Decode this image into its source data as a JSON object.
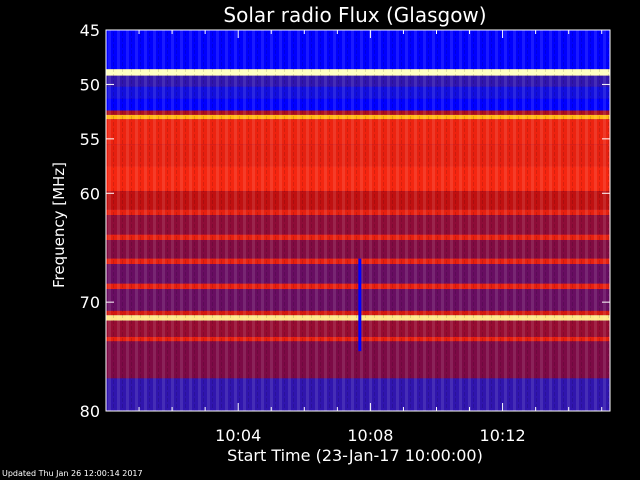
{
  "chart_data": {
    "type": "heatmap",
    "title": "Solar radio Flux (Glasgow)",
    "xlabel": "Start Time (23-Jan-17 10:00:00)",
    "ylabel": "Frequency [MHz]",
    "x_range_minutes": [
      0,
      15.25
    ],
    "ylim": [
      45,
      80
    ],
    "x_ticks": [
      {
        "minute": 4,
        "label": "10:04"
      },
      {
        "minute": 8,
        "label": "10:08"
      },
      {
        "minute": 12,
        "label": "10:12"
      }
    ],
    "y_ticks": [
      {
        "mhz": 45,
        "label": "45"
      },
      {
        "mhz": 50,
        "label": "50"
      },
      {
        "mhz": 55,
        "label": "55"
      },
      {
        "mhz": 60,
        "label": "60"
      },
      {
        "mhz": 70,
        "label": "70"
      },
      {
        "mhz": 80,
        "label": "80"
      }
    ],
    "colormap": [
      "#0000ff",
      "#1e18c8",
      "#7a0a48",
      "#c01010",
      "#ff2a10",
      "#ffb000",
      "#ffffc0"
    ],
    "frequency_bands": [
      {
        "from": 45.0,
        "to": 48.6,
        "level": 0.0
      },
      {
        "from": 48.6,
        "to": 49.2,
        "level": 1.0
      },
      {
        "from": 49.2,
        "to": 50.2,
        "level": 0.2
      },
      {
        "from": 50.2,
        "to": 51.3,
        "level": 0.1
      },
      {
        "from": 51.3,
        "to": 52.4,
        "level": 0.0
      },
      {
        "from": 52.4,
        "to": 52.8,
        "level": 0.45
      },
      {
        "from": 52.8,
        "to": 53.2,
        "level": 0.85
      },
      {
        "from": 53.2,
        "to": 55.5,
        "level": 0.62
      },
      {
        "from": 55.5,
        "to": 57.5,
        "level": 0.6
      },
      {
        "from": 57.5,
        "to": 59.8,
        "level": 0.64
      },
      {
        "from": 59.8,
        "to": 61.5,
        "level": 0.5
      },
      {
        "from": 61.5,
        "to": 62.0,
        "level": 0.6
      },
      {
        "from": 62.0,
        "to": 63.8,
        "level": 0.38
      },
      {
        "from": 63.8,
        "to": 64.3,
        "level": 0.6
      },
      {
        "from": 64.3,
        "to": 66.0,
        "level": 0.35
      },
      {
        "from": 66.0,
        "to": 66.5,
        "level": 0.6
      },
      {
        "from": 66.5,
        "to": 68.3,
        "level": 0.3
      },
      {
        "from": 68.3,
        "to": 68.8,
        "level": 0.6
      },
      {
        "from": 68.8,
        "to": 70.8,
        "level": 0.3
      },
      {
        "from": 70.8,
        "to": 71.2,
        "level": 0.55
      },
      {
        "from": 71.2,
        "to": 71.7,
        "level": 0.95
      },
      {
        "from": 71.7,
        "to": 73.2,
        "level": 0.4
      },
      {
        "from": 73.2,
        "to": 73.6,
        "level": 0.6
      },
      {
        "from": 73.6,
        "to": 77.0,
        "level": 0.34
      },
      {
        "from": 77.0,
        "to": 80.0,
        "level": 0.2
      }
    ],
    "burst": {
      "minute": 7.68,
      "from_mhz": 66.0,
      "to_mhz": 74.5,
      "level": 0.0
    }
  },
  "footer": "Updated Thu Jan 26 12:00:14 2017"
}
